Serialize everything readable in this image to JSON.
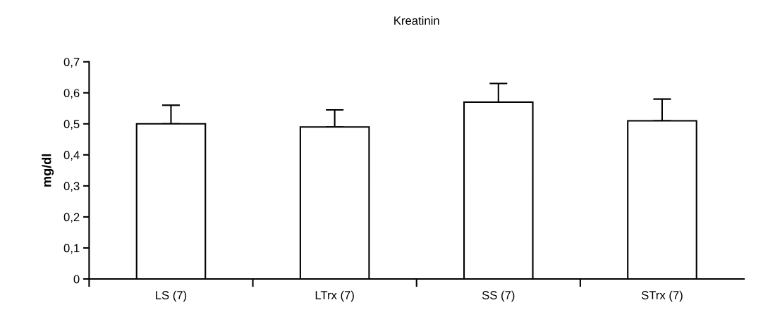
{
  "chart_data": {
    "type": "bar",
    "title": "Kreatinin",
    "ylabel": "mg/dl",
    "categories": [
      "LS (7)",
      "LTrx (7)",
      "SS (7)",
      "STrx (7)"
    ],
    "values": [
      0.5,
      0.49,
      0.57,
      0.51
    ],
    "errors": [
      [
        0.5,
        0.56
      ],
      [
        0.49,
        0.545
      ],
      [
        0.57,
        0.63
      ],
      [
        0.51,
        0.58
      ]
    ],
    "color": "#ffffff",
    "ylim": [
      0,
      0.7
    ],
    "yticks": [
      {
        "value": 0,
        "label": "0"
      },
      {
        "value": 0.1,
        "label": "0,1"
      },
      {
        "value": 0.2,
        "label": "0,2"
      },
      {
        "value": 0.3,
        "label": "0,3"
      },
      {
        "value": 0.4,
        "label": "0,4"
      },
      {
        "value": 0.5,
        "label": "0,5"
      },
      {
        "value": 0.6,
        "label": "0,6"
      },
      {
        "value": 0.7,
        "label": "0,7"
      }
    ],
    "grid": false,
    "legend": false
  }
}
